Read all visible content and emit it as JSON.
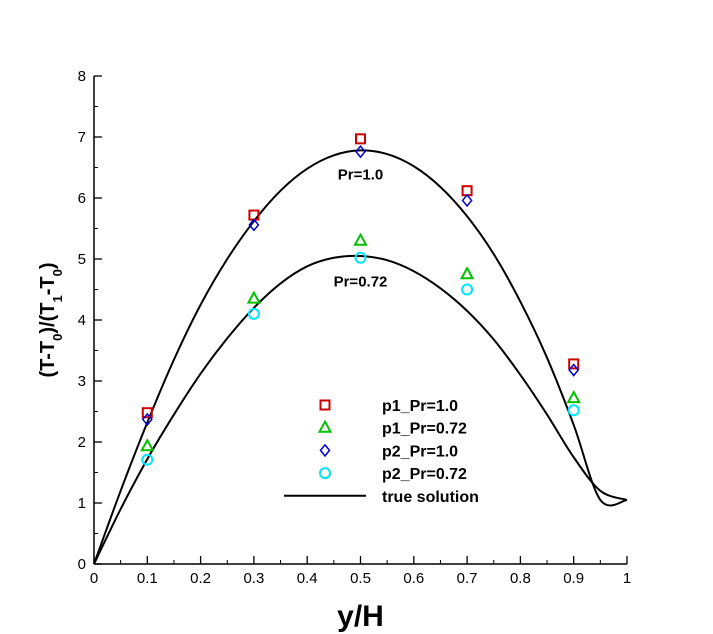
{
  "chart_data": {
    "type": "line",
    "title": "",
    "xlabel": "y/H",
    "ylabel": "(T-T0)/(T1-T0)",
    "ylabel_parts": {
      "a": "(T-T",
      "sub1": "0",
      "b": ")/(T",
      "sub2": "1",
      "c": "-T",
      "sub3": "0",
      "d": ")"
    },
    "xlim": [
      0,
      1
    ],
    "ylim": [
      0,
      8
    ],
    "grid": false,
    "legend_position": "lower-right",
    "x_ticks": [
      0,
      0.1,
      0.2,
      0.3,
      0.4,
      0.5,
      0.6,
      0.7,
      0.8,
      0.9,
      1
    ],
    "x_tick_labels": [
      "0",
      "0.1",
      "0.2",
      "0.3",
      "0.4",
      "0.5",
      "0.6",
      "0.7",
      "0.8",
      "0.9",
      "1"
    ],
    "y_ticks": [
      0,
      1,
      2,
      3,
      4,
      5,
      6,
      7,
      8
    ],
    "y_tick_labels": [
      "0",
      "1",
      "2",
      "3",
      "4",
      "5",
      "6",
      "7",
      "8"
    ],
    "series": [
      {
        "name": "p1_Pr=1.0",
        "kind": "scatter",
        "marker": "square",
        "color": "#cc0000",
        "x": [
          0.1,
          0.3,
          0.5,
          0.7,
          0.9
        ],
        "y": [
          2.48,
          5.72,
          6.97,
          6.12,
          3.28
        ]
      },
      {
        "name": "p1_Pr=0.72",
        "kind": "scatter",
        "marker": "triangle",
        "color": "#00c000",
        "x": [
          0.1,
          0.3,
          0.5,
          0.7,
          0.9
        ],
        "y": [
          1.93,
          4.35,
          5.3,
          4.75,
          2.72
        ]
      },
      {
        "name": "p2_Pr=1.0",
        "kind": "scatter",
        "marker": "diamond",
        "color": "#0000cc",
        "x": [
          0.1,
          0.3,
          0.5,
          0.7,
          0.9
        ],
        "y": [
          2.37,
          5.56,
          6.76,
          5.96,
          3.18
        ]
      },
      {
        "name": "p2_Pr=0.72",
        "kind": "scatter",
        "marker": "circle",
        "color": "#00e5ff",
        "x": [
          0.1,
          0.3,
          0.5,
          0.7,
          0.9
        ],
        "y": [
          1.71,
          4.1,
          5.02,
          4.5,
          2.52
        ]
      },
      {
        "name": "true solution",
        "kind": "line",
        "color": "#000000",
        "curves": [
          {
            "label": "Pr=1.0",
            "x": [
              0,
              0.05,
              0.1,
              0.15,
              0.2,
              0.25,
              0.3,
              0.35,
              0.4,
              0.45,
              0.5,
              0.55,
              0.6,
              0.65,
              0.7,
              0.75,
              0.8,
              0.85,
              0.9,
              0.95,
              1
            ],
            "y": [
              0,
              1.2,
              2.32,
              3.35,
              4.25,
              5.0,
              5.62,
              6.12,
              6.48,
              6.7,
              6.78,
              6.72,
              6.52,
              6.18,
              5.7,
              5.08,
              4.3,
              3.38,
              2.28,
              1.05,
              1.05
            ]
          },
          {
            "label": "Pr=0.72",
            "x": [
              0,
              0.05,
              0.1,
              0.15,
              0.2,
              0.25,
              0.3,
              0.35,
              0.4,
              0.45,
              0.5,
              0.55,
              0.6,
              0.65,
              0.7,
              0.75,
              0.8,
              0.85,
              0.9,
              0.95,
              1
            ],
            "y": [
              0,
              0.9,
              1.72,
              2.45,
              3.12,
              3.7,
              4.2,
              4.6,
              4.88,
              5.02,
              5.05,
              4.98,
              4.8,
              4.52,
              4.15,
              3.68,
              3.1,
              2.45,
              1.75,
              1.2,
              1.05
            ]
          }
        ]
      }
    ],
    "annotations": [
      {
        "text": "Pr=1.0",
        "x": 0.5,
        "y": 6.3
      },
      {
        "text": "Pr=0.72",
        "x": 0.5,
        "y": 4.55
      }
    ]
  }
}
